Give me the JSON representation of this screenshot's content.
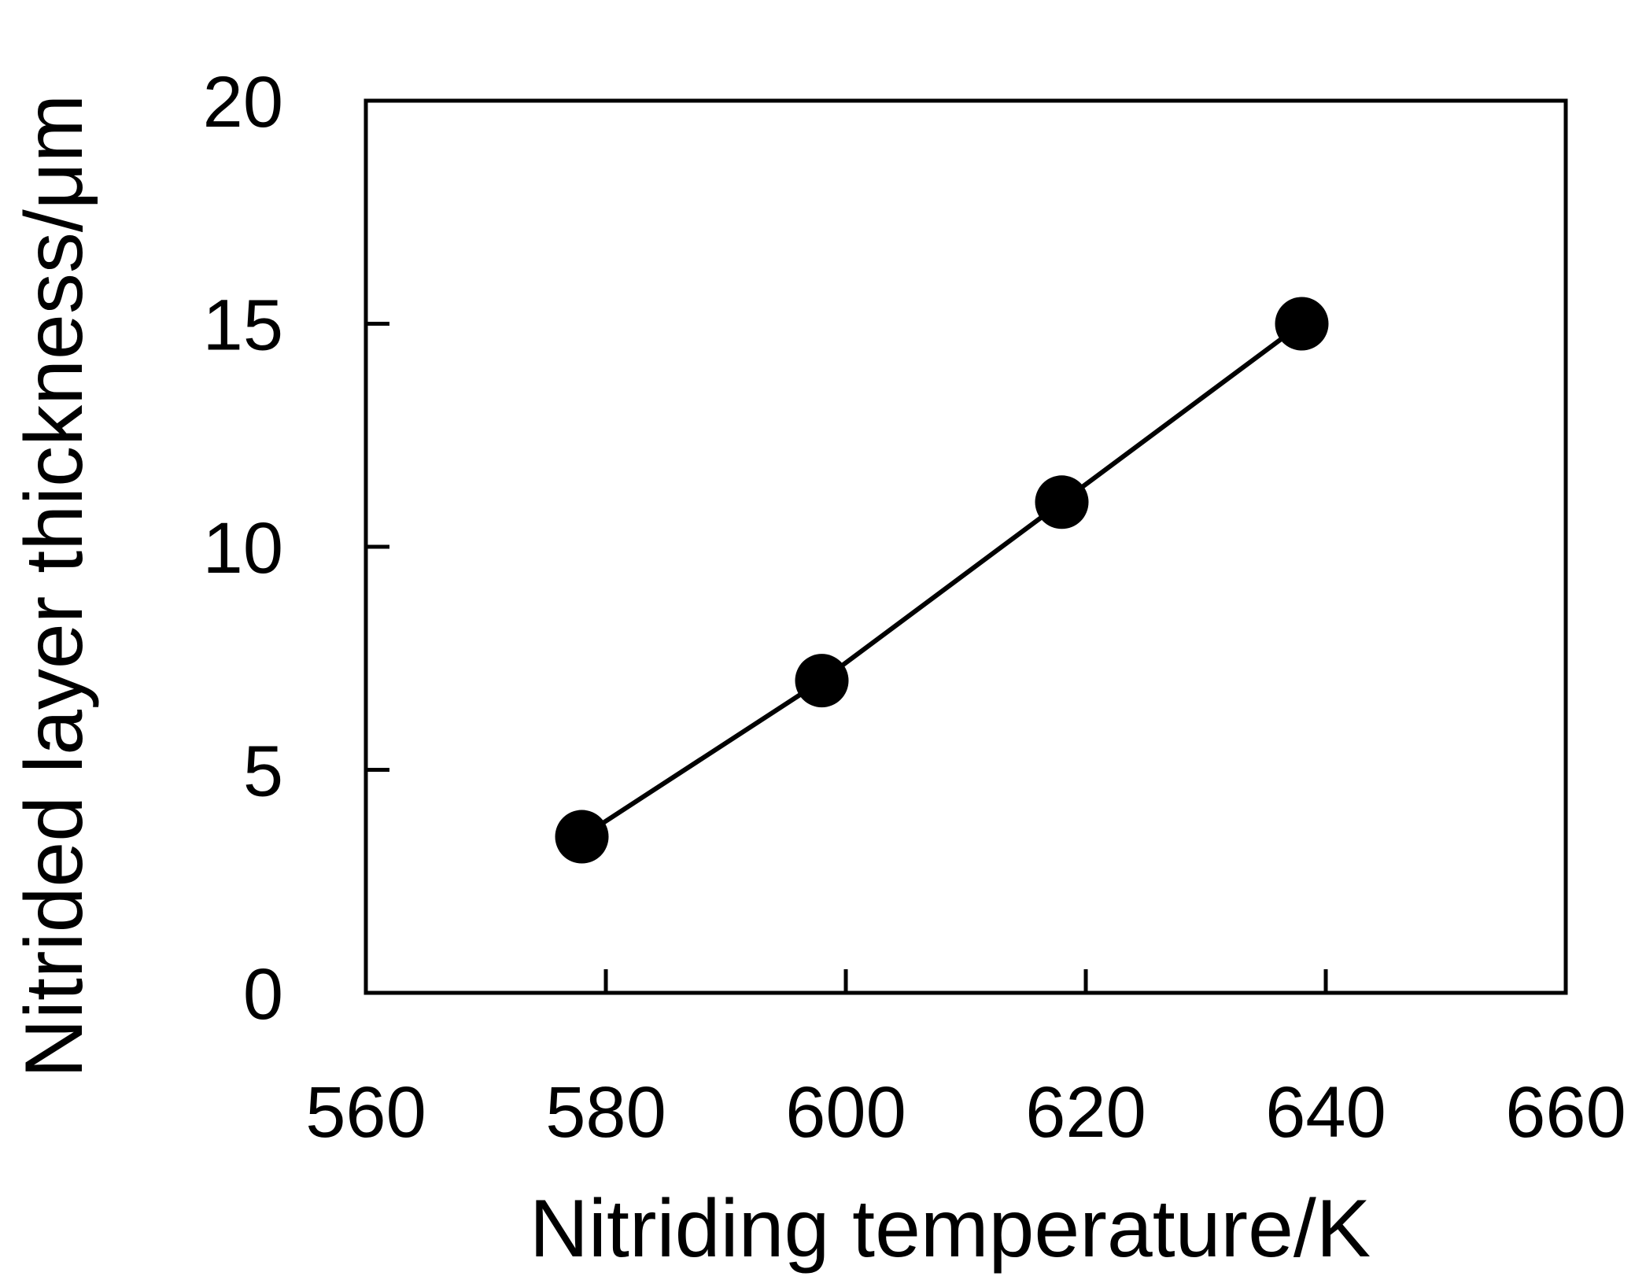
{
  "chart_data": {
    "type": "line",
    "title": "",
    "xlabel": "Nitriding temperature/K",
    "ylabel": "Nitrided layer thickness/μm",
    "xlim": [
      560,
      660
    ],
    "ylim": [
      0,
      20
    ],
    "xticks": [
      560,
      580,
      600,
      620,
      640,
      660
    ],
    "yticks": [
      0,
      5,
      10,
      15,
      20
    ],
    "grid": false,
    "legend": "none",
    "series": [
      {
        "x": [
          578,
          598,
          618,
          638
        ],
        "y": [
          3.5,
          7,
          11,
          15
        ],
        "marker": "filled-circle",
        "color": "#000000"
      }
    ]
  }
}
